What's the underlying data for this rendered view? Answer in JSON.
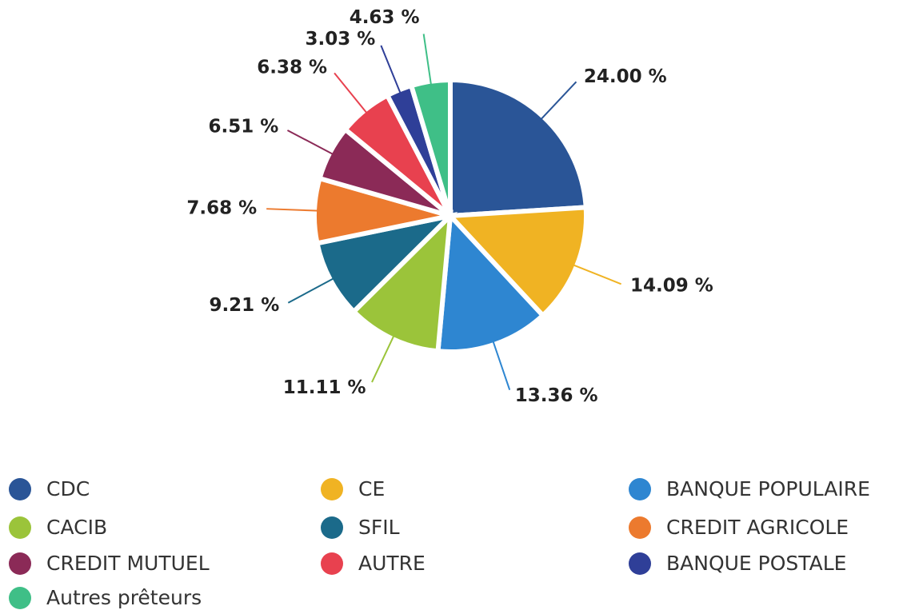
{
  "chart_data": {
    "type": "pie",
    "categories": [
      "CDC",
      "CE",
      "BANQUE POPULAIRE",
      "CACIB",
      "SFIL",
      "CREDIT AGRICOLE",
      "CREDIT MUTUEL",
      "AUTRE",
      "BANQUE POSTALE",
      "Autres prêteurs"
    ],
    "values": [
      24.0,
      14.09,
      13.36,
      11.11,
      9.21,
      7.68,
      6.51,
      6.38,
      3.03,
      4.63
    ],
    "value_labels": [
      "24.00 %",
      "14.09 %",
      "13.36 %",
      "11.11 %",
      "9.21 %",
      "7.68 %",
      "6.51 %",
      "6.38 %",
      "3.03 %",
      "4.63 %"
    ],
    "colors": [
      "#2a5597",
      "#f0b323",
      "#2e86d1",
      "#9bc43a",
      "#1b6a8a",
      "#ec7a2e",
      "#8b2a57",
      "#e8414f",
      "#2f3f98",
      "#3fbf87"
    ],
    "legend": "bottom"
  }
}
